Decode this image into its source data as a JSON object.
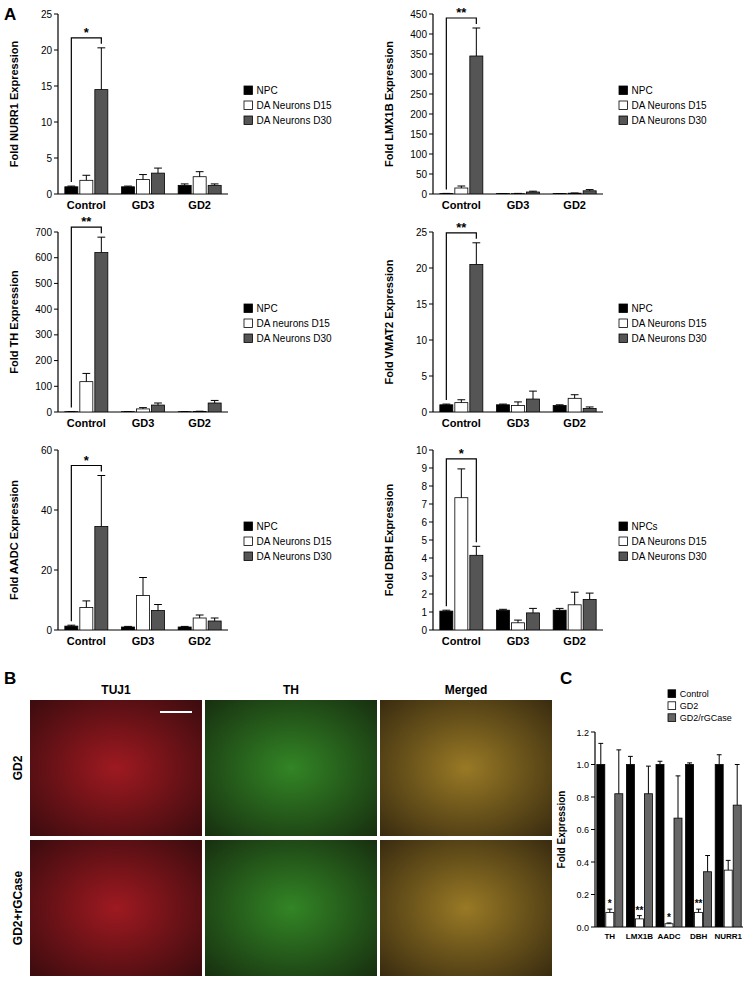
{
  "panel_labels": [
    "A",
    "B",
    "C"
  ],
  "panel_b": {
    "columns": [
      "TUJ1",
      "TH",
      "Merged"
    ],
    "rows": [
      "GD2",
      "GD2+rGCase"
    ]
  },
  "chart_data": [
    {
      "type": "bar",
      "ylabel": "Fold NURR1 Expression",
      "categories": [
        "Control",
        "GD3",
        "GD2"
      ],
      "ylim": [
        0,
        25
      ],
      "yticks": [
        0,
        5,
        10,
        15,
        20,
        25
      ],
      "legend": "right",
      "series": [
        {
          "name": "NPC",
          "color": "#000000",
          "values": [
            1,
            1,
            1.2
          ],
          "errors": [
            0.1,
            0.1,
            0.2
          ]
        },
        {
          "name": "DA Neurons D15",
          "color": "#ffffff",
          "values": [
            1.9,
            2,
            2.4
          ],
          "errors": [
            0.7,
            0.7,
            0.7
          ]
        },
        {
          "name": "DA Neurons D30",
          "color": "#555555",
          "values": [
            14.5,
            2.9,
            1.2
          ],
          "errors": [
            5.8,
            0.7,
            0.2
          ]
        }
      ],
      "annotations": [
        {
          "text": "*",
          "category": "Control"
        }
      ]
    },
    {
      "type": "bar",
      "ylabel": "Fold LMX1B Expression",
      "categories": [
        "Control",
        "GD3",
        "GD2"
      ],
      "ylim": [
        0,
        450
      ],
      "yticks": [
        0,
        50,
        100,
        150,
        200,
        250,
        300,
        350,
        400,
        450
      ],
      "legend": "right",
      "series": [
        {
          "name": "NPC",
          "color": "#000000",
          "values": [
            1,
            1,
            1
          ],
          "errors": [
            0.5,
            0.2,
            0.2
          ]
        },
        {
          "name": "DA Neurons D15",
          "color": "#ffffff",
          "values": [
            15,
            1,
            2
          ],
          "errors": [
            5,
            0.5,
            0.5
          ]
        },
        {
          "name": "DA Neurons D30",
          "color": "#555555",
          "values": [
            345,
            5,
            8
          ],
          "errors": [
            70,
            2,
            3
          ]
        }
      ],
      "annotations": [
        {
          "text": "**",
          "category": "Control"
        }
      ]
    },
    {
      "type": "bar",
      "ylabel": "Fold TH Expression",
      "categories": [
        "Control",
        "GD3",
        "GD2"
      ],
      "ylim": [
        0,
        700
      ],
      "yticks": [
        0,
        100,
        200,
        300,
        400,
        500,
        600,
        700
      ],
      "legend": "right",
      "series": [
        {
          "name": "NPC",
          "color": "#000000",
          "values": [
            1,
            1,
            1
          ],
          "errors": [
            0.5,
            0.2,
            0.2
          ]
        },
        {
          "name": "DA neurons D15",
          "color": "#ffffff",
          "values": [
            118,
            12,
            2
          ],
          "errors": [
            32,
            5,
            1
          ]
        },
        {
          "name": "DA Neurons D30",
          "color": "#555555",
          "values": [
            620,
            27,
            35
          ],
          "errors": [
            60,
            8,
            10
          ]
        }
      ],
      "annotations": [
        {
          "text": "**",
          "category": "Control"
        }
      ]
    },
    {
      "type": "bar",
      "ylabel": "Fold VMAT2 Expression",
      "categories": [
        "Control",
        "GD3",
        "GD2"
      ],
      "ylim": [
        0,
        25
      ],
      "yticks": [
        0,
        5,
        10,
        15,
        20,
        25
      ],
      "legend": "right",
      "series": [
        {
          "name": "NPC",
          "color": "#000000",
          "values": [
            1,
            1,
            0.9
          ],
          "errors": [
            0.1,
            0.1,
            0.1
          ]
        },
        {
          "name": "DA Neurons D15",
          "color": "#ffffff",
          "values": [
            1.3,
            0.9,
            1.9
          ],
          "errors": [
            0.4,
            0.5,
            0.5
          ]
        },
        {
          "name": "DA Neurons D30",
          "color": "#555555",
          "values": [
            20.5,
            1.8,
            0.5
          ],
          "errors": [
            3,
            1.1,
            0.2
          ]
        }
      ],
      "annotations": [
        {
          "text": "**",
          "category": "Control"
        }
      ]
    },
    {
      "type": "bar",
      "ylabel": "Fold AADC Expression",
      "categories": [
        "Control",
        "GD3",
        "GD2"
      ],
      "ylim": [
        0,
        60
      ],
      "yticks": [
        0,
        20,
        40,
        60
      ],
      "legend": "right",
      "series": [
        {
          "name": "NPC",
          "color": "#000000",
          "values": [
            1.3,
            1,
            1
          ],
          "errors": [
            0.3,
            0.2,
            0.2
          ]
        },
        {
          "name": "DA Neurons D15",
          "color": "#ffffff",
          "values": [
            7.5,
            11.5,
            4
          ],
          "errors": [
            2.2,
            6,
            1
          ]
        },
        {
          "name": "DA Neurons D30",
          "color": "#555555",
          "values": [
            34.5,
            6.5,
            3
          ],
          "errors": [
            17,
            2,
            1
          ]
        }
      ],
      "annotations": [
        {
          "text": "*",
          "category": "Control"
        }
      ]
    },
    {
      "type": "bar",
      "ylabel": "Fold DBH Expression",
      "categories": [
        "Control",
        "GD3",
        "GD2"
      ],
      "ylim": [
        0,
        10
      ],
      "yticks": [
        0,
        1,
        2,
        3,
        4,
        5,
        6,
        7,
        8,
        9,
        10
      ],
      "legend": "right",
      "series": [
        {
          "name": "NPCs",
          "color": "#000000",
          "values": [
            1.05,
            1.1,
            1.1
          ],
          "errors": [
            0.05,
            0.05,
            0.1
          ]
        },
        {
          "name": "DA Neurons D15",
          "color": "#ffffff",
          "values": [
            7.35,
            0.4,
            1.4
          ],
          "errors": [
            1.6,
            0.15,
            0.7
          ]
        },
        {
          "name": "DA Neurons D30",
          "color": "#555555",
          "values": [
            4.15,
            0.95,
            1.7
          ],
          "errors": [
            0.5,
            0.25,
            0.35
          ]
        }
      ],
      "annotations": [
        {
          "text": "*",
          "category": "Control"
        }
      ]
    },
    {
      "type": "bar",
      "ylabel": "Fold Expression",
      "categories": [
        "TH",
        "LMX1B",
        "AADC",
        "DBH",
        "NURR1"
      ],
      "ylim": [
        0,
        1.2
      ],
      "yticks": [
        {
          "value": 0,
          "label": "0.0"
        },
        0.2,
        0.4,
        0.6,
        0.8,
        {
          "value": 1,
          "label": "1.0"
        },
        1.2
      ],
      "legend": "top right",
      "series": [
        {
          "name": "Control",
          "color": "#000000",
          "values": [
            1,
            1,
            1,
            1,
            1
          ],
          "errors": [
            0.13,
            0.05,
            0.02,
            0.01,
            0.06
          ]
        },
        {
          "name": "GD2",
          "color": "#ffffff",
          "values": [
            0.09,
            0.05,
            0.02,
            0.09,
            0.35
          ],
          "errors": [
            0.02,
            0.02,
            0.005,
            0.02,
            0.06
          ]
        },
        {
          "name": "GD2/rGCase",
          "color": "#666666",
          "values": [
            0.82,
            0.82,
            0.67,
            0.34,
            0.75
          ],
          "errors": [
            0.27,
            0.17,
            0.26,
            0.1,
            0.25
          ]
        }
      ],
      "annotations": [
        {
          "text": "*",
          "category": "TH",
          "series": "GD2"
        },
        {
          "text": "**",
          "category": "LMX1B",
          "series": "GD2"
        },
        {
          "text": "*",
          "category": "AADC",
          "series": "GD2"
        },
        {
          "text": "**",
          "category": "DBH",
          "series": "GD2"
        }
      ]
    }
  ]
}
